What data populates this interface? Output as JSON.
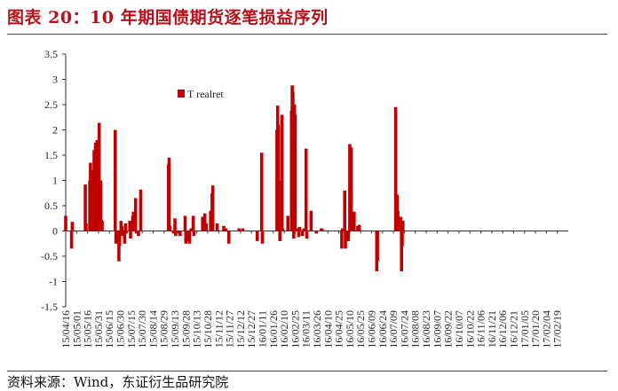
{
  "title": "图表 20：10 年期国债期货逐笔损益序列",
  "source": "资料来源：Wind，东证衍生品研究院",
  "colors": {
    "series": "#c00000",
    "title": "#b5121b",
    "axis": "#333333"
  },
  "chart_data": {
    "type": "bar",
    "ylim": [
      -1.5,
      3.5
    ],
    "yticks": [
      "3.5",
      "3",
      "2.5",
      "2",
      "1.5",
      "1",
      "0.5",
      "0",
      "-0.5",
      "-1",
      "-1.5"
    ],
    "ytick_values": [
      3.5,
      3,
      2.5,
      2,
      1.5,
      1,
      0.5,
      0,
      -0.5,
      -1,
      -1.5
    ],
    "xtick_labels": [
      "15/04/16",
      "15/05/01",
      "15/05/16",
      "15/05/31",
      "15/06/15",
      "15/06/30",
      "15/07/15",
      "15/07/30",
      "15/08/14",
      "15/08/29",
      "15/09/13",
      "15/09/28",
      "15/10/13",
      "15/10/28",
      "15/11/12",
      "15/11/27",
      "15/12/12",
      "15/12/27",
      "16/01/11",
      "16/01/26",
      "16/02/10",
      "16/02/25",
      "16/03/11",
      "16/03/26",
      "16/04/10",
      "16/04/25",
      "16/05/10",
      "16/05/25",
      "16/06/09",
      "16/06/24",
      "16/07/09",
      "16/07/24",
      "16/08/08",
      "16/08/23",
      "16/09/07",
      "16/09/22",
      "16/10/07",
      "16/10/22",
      "16/11/06",
      "16/11/21",
      "16/12/06",
      "16/12/21",
      "17/01/05",
      "17/01/20",
      "17/02/04",
      "17/02/19"
    ],
    "legend": [
      {
        "name": "T realret"
      }
    ],
    "legend_position": "top-left",
    "grid": false,
    "series": [
      {
        "name": "T realret",
        "values": [
          [
            "15/04/16",
            0.3
          ],
          [
            "15/04/24",
            -0.35
          ],
          [
            "15/04/25",
            0.18
          ],
          [
            "15/05/13",
            0.92
          ],
          [
            "15/05/14",
            0.15
          ],
          [
            "15/05/19",
            1.0
          ],
          [
            "15/05/20",
            1.35
          ],
          [
            "15/05/21",
            0.2
          ],
          [
            "15/05/22",
            1.2
          ],
          [
            "15/05/25",
            1.6
          ],
          [
            "15/05/26",
            1.45
          ],
          [
            "15/05/27",
            1.75
          ],
          [
            "15/05/28",
            0.25
          ],
          [
            "15/05/29",
            1.8
          ],
          [
            "15/06/01",
            2.14
          ],
          [
            "15/06/02",
            0.3
          ],
          [
            "15/06/03",
            1.0
          ],
          [
            "15/06/04",
            0.22
          ],
          [
            "15/06/05",
            0.2
          ],
          [
            "15/06/23",
            2.0
          ],
          [
            "15/06/24",
            -0.25
          ],
          [
            "15/06/25",
            -0.15
          ],
          [
            "15/06/28",
            -0.6
          ],
          [
            "15/06/29",
            -0.3
          ],
          [
            "15/07/01",
            0.2
          ],
          [
            "15/07/02",
            0.1
          ],
          [
            "15/07/03",
            -0.1
          ],
          [
            "15/07/06",
            -0.25
          ],
          [
            "15/07/07",
            0.15
          ],
          [
            "15/07/08",
            -0.05
          ],
          [
            "15/07/13",
            0.2
          ],
          [
            "15/07/14",
            -0.15
          ],
          [
            "15/07/15",
            0.05
          ],
          [
            "15/07/16",
            0.1
          ],
          [
            "15/07/17",
            0.3
          ],
          [
            "15/07/18",
            0.38
          ],
          [
            "15/07/21",
            0.65
          ],
          [
            "15/07/22",
            -0.05
          ],
          [
            "15/07/25",
            -0.1
          ],
          [
            "15/07/28",
            0.82
          ],
          [
            "15/09/04",
            1.32
          ],
          [
            "15/09/05",
            1.45
          ],
          [
            "15/09/06",
            0.1
          ],
          [
            "15/09/11",
            -0.05
          ],
          [
            "15/09/13",
            0.25
          ],
          [
            "15/09/14",
            -0.1
          ],
          [
            "15/09/17",
            -0.05
          ],
          [
            "15/09/20",
            -0.1
          ],
          [
            "15/09/27",
            0.3
          ],
          [
            "15/09/28",
            -0.25
          ],
          [
            "15/09/29",
            -0.2
          ],
          [
            "15/10/01",
            -0.15
          ],
          [
            "15/10/02",
            -0.2
          ],
          [
            "15/10/03",
            -0.25
          ],
          [
            "15/10/05",
            0.05
          ],
          [
            "15/10/08",
            0.3
          ],
          [
            "15/10/09",
            -0.1
          ],
          [
            "15/10/21",
            0.28
          ],
          [
            "15/10/24",
            0.35
          ],
          [
            "15/10/26",
            0.15
          ],
          [
            "15/11/01",
            0.4
          ],
          [
            "15/11/03",
            0.75
          ],
          [
            "15/11/04",
            0.9
          ],
          [
            "15/11/10",
            0.15
          ],
          [
            "15/11/19",
            0.1
          ],
          [
            "15/11/22",
            0.05
          ],
          [
            "15/11/26",
            -0.25
          ],
          [
            "15/12/10",
            0.05
          ],
          [
            "15/12/15",
            0.05
          ],
          [
            "16/01/04",
            -0.2
          ],
          [
            "16/01/10",
            1.55
          ],
          [
            "16/01/11",
            -0.25
          ],
          [
            "16/01/31",
            2.0
          ],
          [
            "16/02/01",
            2.48
          ],
          [
            "16/02/02",
            2.1
          ],
          [
            "16/02/03",
            1.0
          ],
          [
            "16/02/04",
            -0.2
          ],
          [
            "16/02/07",
            2.3
          ],
          [
            "16/02/08",
            0.05
          ],
          [
            "16/02/15",
            0.3
          ],
          [
            "16/02/20",
            2.38
          ],
          [
            "16/02/21",
            2.88
          ],
          [
            "16/02/22",
            2.75
          ],
          [
            "16/02/23",
            -0.15
          ],
          [
            "16/02/24",
            2.5
          ],
          [
            "16/02/25",
            2.3
          ],
          [
            "16/02/28",
            0.05
          ],
          [
            "16/03/01",
            -0.12
          ],
          [
            "16/03/02",
            0.08
          ],
          [
            "16/03/06",
            -0.1
          ],
          [
            "16/03/08",
            0.05
          ],
          [
            "16/03/11",
            1.63
          ],
          [
            "16/03/12",
            -0.15
          ],
          [
            "16/03/18",
            0.4
          ],
          [
            "16/03/25",
            -0.05
          ],
          [
            "16/04/01",
            0.05
          ],
          [
            "16/04/02",
            0.05
          ],
          [
            "16/04/29",
            -0.35
          ],
          [
            "16/04/30",
            0.05
          ],
          [
            "16/05/03",
            0.8
          ],
          [
            "16/05/04",
            -0.35
          ],
          [
            "16/05/08",
            -0.2
          ],
          [
            "16/05/10",
            1.72
          ],
          [
            "16/05/12",
            1.65
          ],
          [
            "16/05/16",
            0.38
          ],
          [
            "16/05/21",
            0.1
          ],
          [
            "16/05/22",
            0.05
          ],
          [
            "16/05/23",
            0.12
          ],
          [
            "16/06/16",
            -0.8
          ],
          [
            "16/06/17",
            -0.6
          ],
          [
            "16/07/12",
            2.45
          ],
          [
            "16/07/13",
            0.3
          ],
          [
            "16/07/14",
            0.72
          ],
          [
            "16/07/15",
            0.4
          ],
          [
            "16/07/16",
            0.25
          ],
          [
            "16/07/18",
            0.1
          ],
          [
            "16/07/19",
            0.28
          ],
          [
            "16/07/20",
            -0.8
          ],
          [
            "16/07/21",
            -0.3
          ],
          [
            "16/07/22",
            0.2
          ]
        ]
      }
    ]
  }
}
